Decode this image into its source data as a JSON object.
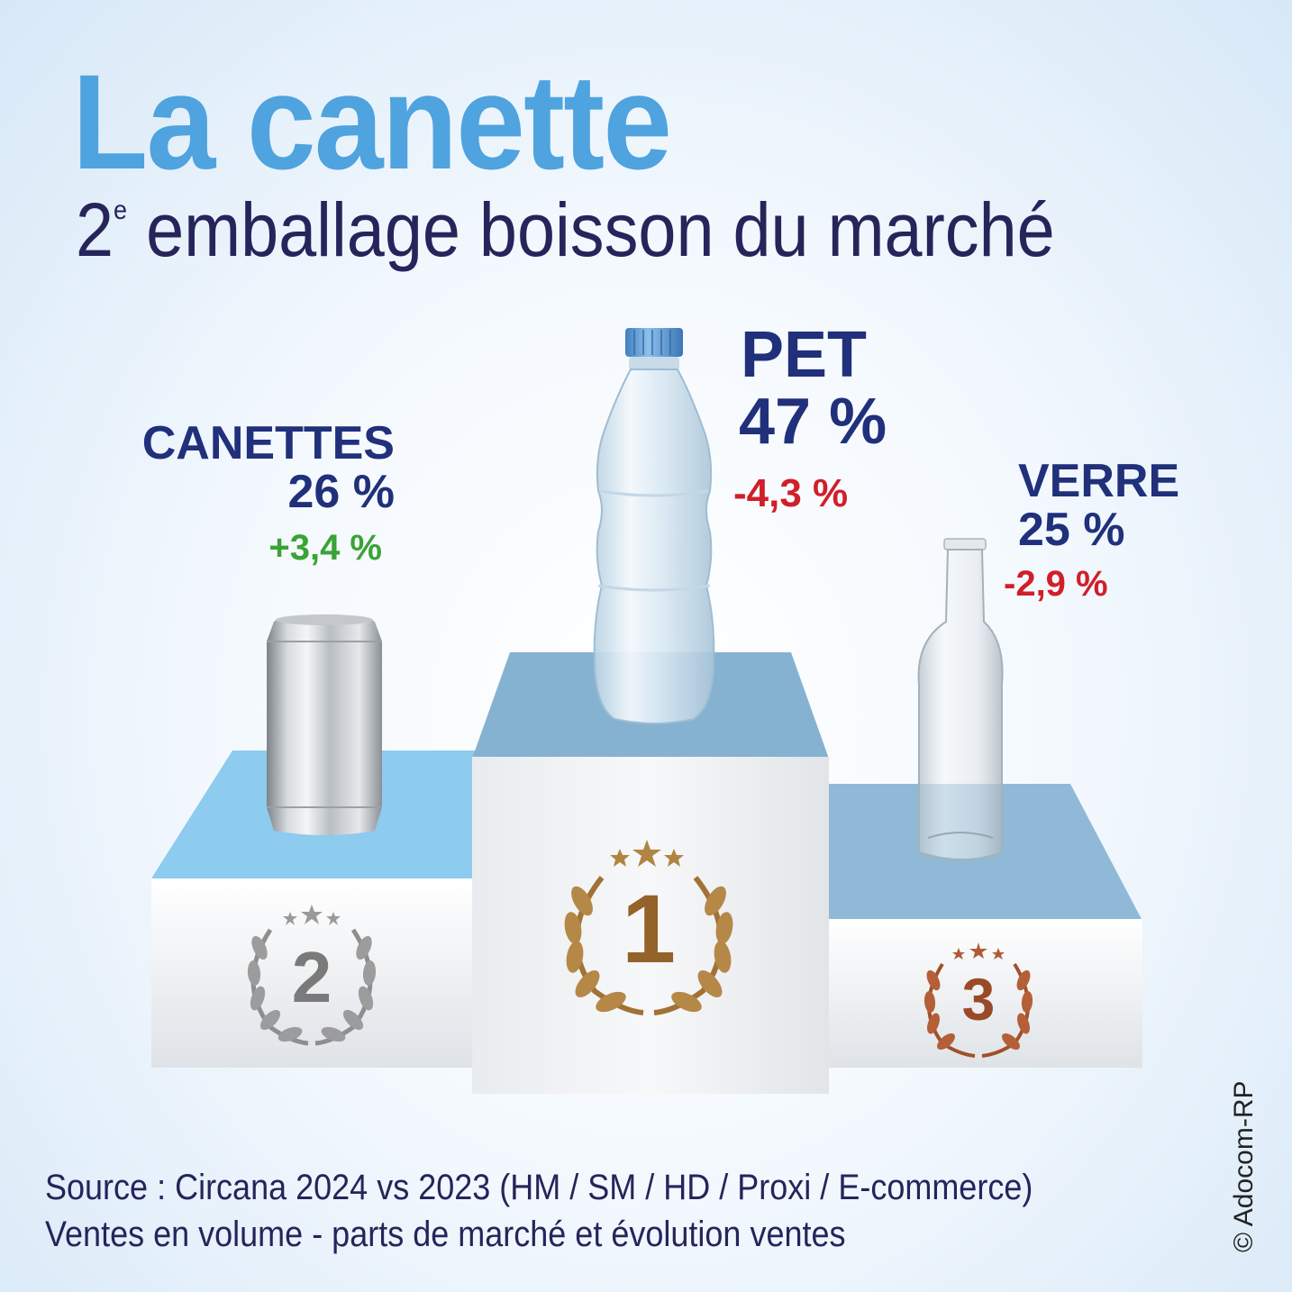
{
  "header": {
    "title": "La canette",
    "subtitle_ordinal": "2",
    "subtitle_ordinal_suffix": "e",
    "subtitle_rest": " emballage boisson du marché"
  },
  "podium": [
    {
      "rank": "1",
      "name": "PET",
      "share": "47 %",
      "evolution": "-4,3 %",
      "evolution_color": "#d11f2a",
      "medal_color": "#a9783a"
    },
    {
      "rank": "2",
      "name": "CANETTES",
      "share": "26 %",
      "evolution": "+3,4 %",
      "evolution_color": "#3aa335",
      "medal_color": "#8c8c8c"
    },
    {
      "rank": "3",
      "name": "VERRE",
      "share": "25 %",
      "evolution": "-2,9 %",
      "evolution_color": "#d11f2a",
      "medal_color": "#a5532e"
    }
  ],
  "footer": {
    "source_line1": "Source : Circana 2024 vs 2023 (HM / SM / HD / Proxi / E-commerce)",
    "source_line2": "Ventes en volume - parts de marché et évolution ventes",
    "copyright": "© Adocom-RP"
  },
  "colors": {
    "title": "#4fa3de",
    "subtitle": "#26245a",
    "labels": "#20307a",
    "podium_top_left": "#8dcbef",
    "podium_top_center": "#86b2d2",
    "podium_top_right": "#8fb9d6"
  }
}
